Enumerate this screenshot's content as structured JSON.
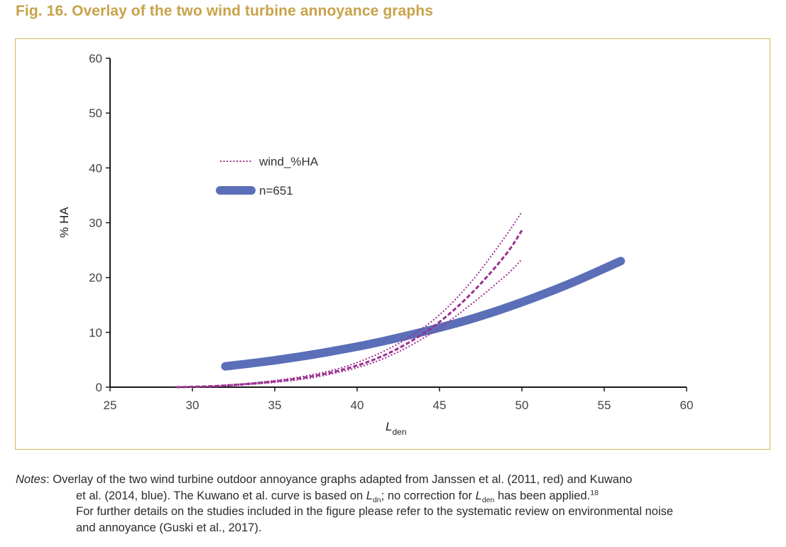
{
  "figure": {
    "title": "Fig. 16. Overlay of the two wind turbine annoyance graphs"
  },
  "chart_data": {
    "type": "line",
    "title": "",
    "xlabel": "L",
    "xlabel_sub": "den",
    "ylabel": "% HA",
    "xlim": [
      25,
      60
    ],
    "ylim": [
      0,
      60
    ],
    "x_ticks": [
      25,
      30,
      35,
      40,
      45,
      50,
      55,
      60
    ],
    "y_ticks": [
      0,
      10,
      20,
      30,
      40,
      50,
      60
    ],
    "grid": false,
    "legend_position": "upper-left",
    "series": [
      {
        "name": "wind_%HA",
        "style": "dotted",
        "color": "#9b2f8f",
        "x": [
          29,
          31,
          33,
          35,
          37,
          39,
          41,
          43,
          45,
          47,
          49,
          50
        ],
        "y": [
          0,
          0.2,
          0.6,
          1.2,
          2.1,
          3.5,
          5.7,
          8.8,
          13.2,
          19.5,
          27.5,
          32.0
        ]
      },
      {
        "name": "",
        "style": "dotted",
        "color": "#9b2f8f",
        "x": [
          29,
          31,
          33,
          35,
          37,
          39,
          41,
          43,
          45,
          47,
          49,
          50
        ],
        "y": [
          0,
          0.1,
          0.4,
          0.9,
          1.6,
          2.8,
          4.5,
          7.2,
          10.8,
          15.3,
          20.3,
          23.3
        ]
      },
      {
        "name": "",
        "style": "dashed",
        "color": "#9b2f8f",
        "x": [
          29,
          31,
          33,
          35,
          37,
          39,
          41,
          43,
          45,
          47,
          49,
          50
        ],
        "y": [
          0,
          0.15,
          0.5,
          1.05,
          1.85,
          3.1,
          5.0,
          7.9,
          11.9,
          17.3,
          24.1,
          28.6
        ]
      },
      {
        "name": "n=651",
        "style": "solid-thick",
        "color": "#5b6fb8",
        "x": [
          32,
          35,
          38,
          41,
          44,
          47,
          50,
          53,
          56
        ],
        "y": [
          3.8,
          4.9,
          6.3,
          8.0,
          10.1,
          12.5,
          15.5,
          19.0,
          23.0
        ]
      }
    ]
  },
  "notes": {
    "label": "Notes",
    "line1_a": ": Overlay of the two wind turbine outdoor annoyance graphs adapted from Janssen et al. (2011, red) and Kuwano",
    "line2_a": "et al. (2014, blue). The Kuwano et al. curve is based on ",
    "line2_L1": "L",
    "line2_sub1": "dn",
    "line2_b": "; no correction for ",
    "line2_L2": "L",
    "line2_sub2": "den",
    "line2_c": " has been applied.",
    "line2_sup": "18",
    "line3": "For further details on the studies included in the figure please refer to the systematic review on environmental noise",
    "line4": "and annoyance (Guski et al., 2017)."
  }
}
